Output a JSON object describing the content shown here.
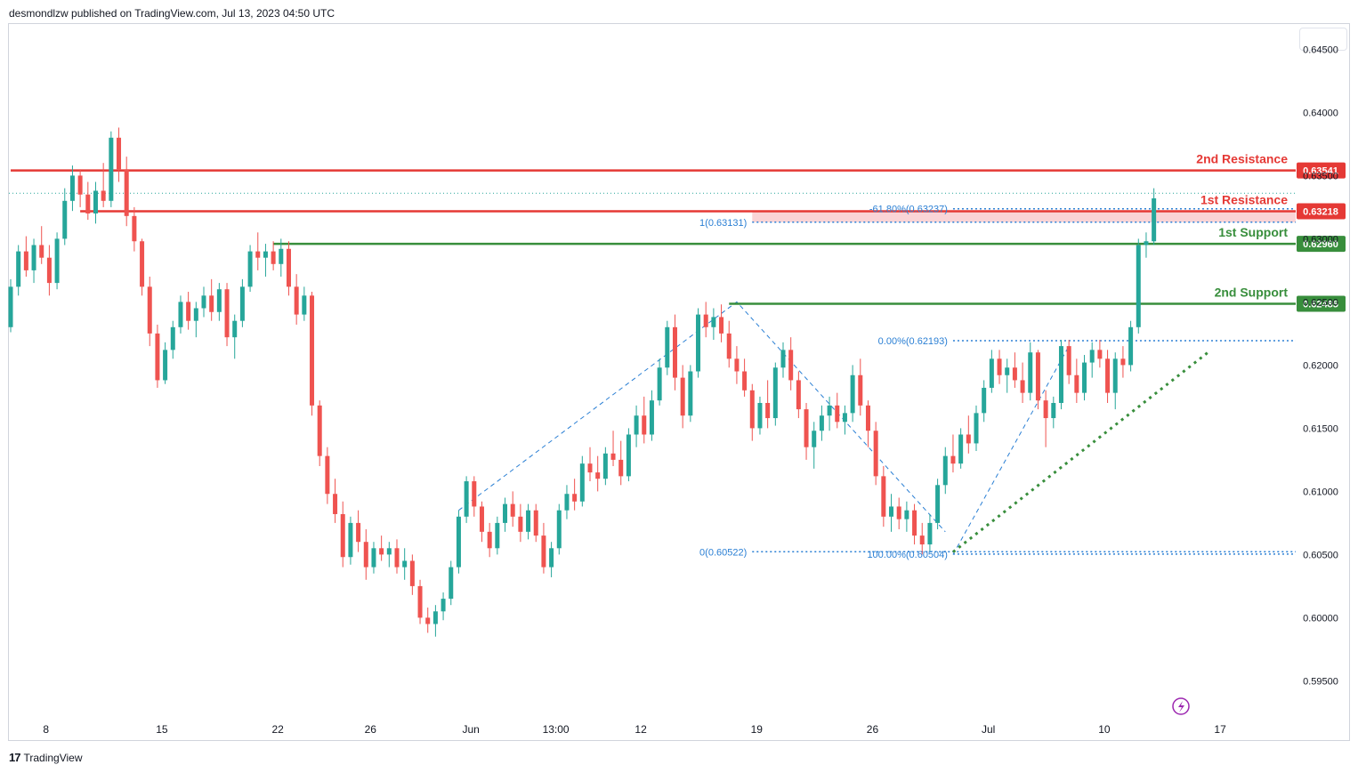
{
  "header": {
    "text": "desmondlzw published on TradingView.com, Jul 13, 2023 04:50 UTC"
  },
  "footer": {
    "brand": "TradingView",
    "logo": "17"
  },
  "colors": {
    "up": "#26a69a",
    "down": "#ef5350",
    "resistance": "#e53935",
    "support": "#388e3c",
    "fib": "#2a7fd4",
    "zone": "#f9c9cc"
  },
  "chart_data": {
    "type": "candlestick",
    "x_ticks": [
      {
        "label": "8",
        "i": 4
      },
      {
        "label": "15",
        "i": 19
      },
      {
        "label": "22",
        "i": 34
      },
      {
        "label": "26",
        "i": 46
      },
      {
        "label": "Jun",
        "i": 59
      },
      {
        "label": "13:00",
        "i": 70
      },
      {
        "label": "12",
        "i": 81
      },
      {
        "label": "19",
        "i": 96
      },
      {
        "label": "26",
        "i": 111
      },
      {
        "label": "Jul",
        "i": 126
      },
      {
        "label": "10",
        "i": 141
      },
      {
        "label": "17",
        "i": 156
      }
    ],
    "y_ticks": [
      "0.64500",
      "0.64000",
      "0.63500",
      "0.63000",
      "0.62500",
      "0.62000",
      "0.61500",
      "0.61000",
      "0.60500",
      "0.60000",
      "0.59500"
    ],
    "ylim": [
      0.592,
      0.647
    ],
    "levels": [
      {
        "name": "2nd Resistance",
        "price": 0.63541,
        "label": "0.63541",
        "kind": "resistance",
        "from_i": 0
      },
      {
        "name": "1st Resistance",
        "price": 0.63218,
        "label": "0.63218",
        "kind": "resistance",
        "from_i": 9
      },
      {
        "name": "1st Support",
        "price": 0.6296,
        "label": "0.62960",
        "kind": "support",
        "from_i": 34
      },
      {
        "name": "2nd Support",
        "price": 0.62485,
        "label": "0.62485",
        "kind": "support",
        "from_i": 93
      }
    ],
    "fib_labels": [
      {
        "text": "-61.80%(0.63237)",
        "price": 0.63237,
        "from_i": 122
      },
      {
        "text": "1(0.63131)",
        "price": 0.63131,
        "from_i": 96
      },
      {
        "text": "0.00%(0.62193)",
        "price": 0.62193,
        "from_i": 122
      },
      {
        "text": "100.00%(0.60504)",
        "price": 0.60504,
        "from_i": 122
      },
      {
        "text": "0(0.60522)",
        "price": 0.60522,
        "from_i": 96
      }
    ],
    "dashed_paths": [
      [
        [
          58,
          0.6085
        ],
        [
          94,
          0.625
        ],
        [
          121,
          0.6068
        ]
      ],
      [
        [
          122,
          0.605
        ],
        [
          137,
          0.6215
        ]
      ]
    ],
    "trendline": [
      [
        122,
        0.6052
      ],
      [
        155,
        0.621
      ]
    ],
    "zone": {
      "top": 0.63218,
      "bottom": 0.63131,
      "from_i": 96
    },
    "candles": [
      [
        0.623,
        0.6268,
        0.6226,
        0.6262
      ],
      [
        0.6262,
        0.6295,
        0.6255,
        0.629
      ],
      [
        0.629,
        0.6302,
        0.627,
        0.6275
      ],
      [
        0.6275,
        0.63,
        0.6265,
        0.6295
      ],
      [
        0.6295,
        0.631,
        0.628,
        0.6285
      ],
      [
        0.6285,
        0.6295,
        0.6255,
        0.6265
      ],
      [
        0.6265,
        0.6305,
        0.626,
        0.63
      ],
      [
        0.63,
        0.634,
        0.6295,
        0.633
      ],
      [
        0.633,
        0.6358,
        0.6322,
        0.635
      ],
      [
        0.635,
        0.6355,
        0.6325,
        0.6335
      ],
      [
        0.6335,
        0.6345,
        0.6315,
        0.632
      ],
      [
        0.632,
        0.6345,
        0.6312,
        0.6338
      ],
      [
        0.6338,
        0.636,
        0.6325,
        0.633
      ],
      [
        0.633,
        0.6385,
        0.6325,
        0.638
      ],
      [
        0.638,
        0.6388,
        0.6345,
        0.6355
      ],
      [
        0.6355,
        0.6365,
        0.631,
        0.6318
      ],
      [
        0.6318,
        0.6325,
        0.629,
        0.6298
      ],
      [
        0.6298,
        0.63,
        0.6255,
        0.6262
      ],
      [
        0.6262,
        0.627,
        0.6215,
        0.6225
      ],
      [
        0.6225,
        0.6232,
        0.6182,
        0.6188
      ],
      [
        0.6188,
        0.6218,
        0.6185,
        0.6212
      ],
      [
        0.6212,
        0.6235,
        0.6205,
        0.623
      ],
      [
        0.623,
        0.6255,
        0.6225,
        0.625
      ],
      [
        0.625,
        0.6258,
        0.6228,
        0.6235
      ],
      [
        0.6235,
        0.625,
        0.6222,
        0.6245
      ],
      [
        0.6245,
        0.6262,
        0.6238,
        0.6255
      ],
      [
        0.6255,
        0.6268,
        0.6235,
        0.6242
      ],
      [
        0.6242,
        0.6265,
        0.6235,
        0.626
      ],
      [
        0.626,
        0.6265,
        0.6215,
        0.6222
      ],
      [
        0.6222,
        0.624,
        0.6205,
        0.6235
      ],
      [
        0.6235,
        0.6268,
        0.623,
        0.6262
      ],
      [
        0.6262,
        0.6295,
        0.6258,
        0.629
      ],
      [
        0.629,
        0.6305,
        0.6275,
        0.6285
      ],
      [
        0.6285,
        0.6296,
        0.627,
        0.629
      ],
      [
        0.629,
        0.6298,
        0.6275,
        0.628
      ],
      [
        0.628,
        0.63,
        0.627,
        0.6292
      ],
      [
        0.6292,
        0.6298,
        0.6255,
        0.6262
      ],
      [
        0.6262,
        0.6272,
        0.6232,
        0.624
      ],
      [
        0.624,
        0.6262,
        0.6235,
        0.6255
      ],
      [
        0.6255,
        0.6258,
        0.616,
        0.6168
      ],
      [
        0.6168,
        0.6172,
        0.612,
        0.6128
      ],
      [
        0.6128,
        0.6135,
        0.609,
        0.6098
      ],
      [
        0.6098,
        0.611,
        0.6075,
        0.6082
      ],
      [
        0.6082,
        0.6092,
        0.604,
        0.6048
      ],
      [
        0.6048,
        0.608,
        0.6042,
        0.6075
      ],
      [
        0.6075,
        0.6085,
        0.6052,
        0.606
      ],
      [
        0.606,
        0.607,
        0.603,
        0.604
      ],
      [
        0.604,
        0.606,
        0.6035,
        0.6055
      ],
      [
        0.6055,
        0.6065,
        0.6045,
        0.605
      ],
      [
        0.605,
        0.606,
        0.604,
        0.6055
      ],
      [
        0.6055,
        0.6062,
        0.6035,
        0.604
      ],
      [
        0.604,
        0.6055,
        0.603,
        0.6045
      ],
      [
        0.6045,
        0.605,
        0.6018,
        0.6025
      ],
      [
        0.6025,
        0.603,
        0.5995,
        0.6
      ],
      [
        0.6,
        0.6008,
        0.5988,
        0.5995
      ],
      [
        0.5995,
        0.601,
        0.5985,
        0.6005
      ],
      [
        0.6005,
        0.602,
        0.5998,
        0.6015
      ],
      [
        0.6015,
        0.6045,
        0.601,
        0.604
      ],
      [
        0.604,
        0.6085,
        0.6035,
        0.608
      ],
      [
        0.608,
        0.6112,
        0.6075,
        0.6108
      ],
      [
        0.6108,
        0.6112,
        0.608,
        0.6088
      ],
      [
        0.6088,
        0.6092,
        0.606,
        0.6068
      ],
      [
        0.6068,
        0.6075,
        0.6048,
        0.6055
      ],
      [
        0.6055,
        0.608,
        0.605,
        0.6075
      ],
      [
        0.6075,
        0.6095,
        0.6068,
        0.609
      ],
      [
        0.609,
        0.61,
        0.6072,
        0.608
      ],
      [
        0.608,
        0.609,
        0.606,
        0.6068
      ],
      [
        0.6068,
        0.609,
        0.6062,
        0.6085
      ],
      [
        0.6085,
        0.609,
        0.606,
        0.6065
      ],
      [
        0.6065,
        0.6075,
        0.6035,
        0.604
      ],
      [
        0.604,
        0.606,
        0.6032,
        0.6055
      ],
      [
        0.6055,
        0.609,
        0.605,
        0.6085
      ],
      [
        0.6085,
        0.6105,
        0.6078,
        0.6098
      ],
      [
        0.6098,
        0.611,
        0.6085,
        0.6092
      ],
      [
        0.6092,
        0.6128,
        0.6088,
        0.6122
      ],
      [
        0.6122,
        0.6135,
        0.6108,
        0.6115
      ],
      [
        0.6115,
        0.6128,
        0.61,
        0.611
      ],
      [
        0.611,
        0.6135,
        0.6105,
        0.613
      ],
      [
        0.613,
        0.6148,
        0.612,
        0.6125
      ],
      [
        0.6125,
        0.614,
        0.6105,
        0.6112
      ],
      [
        0.6112,
        0.615,
        0.6108,
        0.6145
      ],
      [
        0.6145,
        0.6168,
        0.6135,
        0.616
      ],
      [
        0.616,
        0.6175,
        0.6138,
        0.6145
      ],
      [
        0.6145,
        0.618,
        0.614,
        0.6172
      ],
      [
        0.6172,
        0.6205,
        0.6168,
        0.6198
      ],
      [
        0.6198,
        0.6235,
        0.6192,
        0.623
      ],
      [
        0.623,
        0.624,
        0.618,
        0.619
      ],
      [
        0.619,
        0.62,
        0.615,
        0.616
      ],
      [
        0.616,
        0.62,
        0.6155,
        0.6195
      ],
      [
        0.6195,
        0.6245,
        0.619,
        0.624
      ],
      [
        0.624,
        0.625,
        0.6222,
        0.623
      ],
      [
        0.623,
        0.6245,
        0.622,
        0.6238
      ],
      [
        0.6238,
        0.6248,
        0.6218,
        0.6225
      ],
      [
        0.6225,
        0.6235,
        0.6198,
        0.6205
      ],
      [
        0.6205,
        0.6215,
        0.6185,
        0.6195
      ],
      [
        0.6195,
        0.6205,
        0.6175,
        0.618
      ],
      [
        0.618,
        0.6185,
        0.614,
        0.615
      ],
      [
        0.615,
        0.6175,
        0.6145,
        0.617
      ],
      [
        0.617,
        0.6188,
        0.615,
        0.6158
      ],
      [
        0.6158,
        0.6202,
        0.6152,
        0.6198
      ],
      [
        0.6198,
        0.6218,
        0.619,
        0.6212
      ],
      [
        0.6212,
        0.6222,
        0.618,
        0.6188
      ],
      [
        0.6188,
        0.6195,
        0.6158,
        0.6165
      ],
      [
        0.6165,
        0.617,
        0.6125,
        0.6135
      ],
      [
        0.6135,
        0.6155,
        0.6118,
        0.6148
      ],
      [
        0.6148,
        0.6168,
        0.614,
        0.616
      ],
      [
        0.616,
        0.6175,
        0.6148,
        0.6168
      ],
      [
        0.6168,
        0.6178,
        0.615,
        0.6155
      ],
      [
        0.6155,
        0.6168,
        0.6145,
        0.6162
      ],
      [
        0.6162,
        0.62,
        0.6155,
        0.6192
      ],
      [
        0.6192,
        0.6205,
        0.616,
        0.6168
      ],
      [
        0.6168,
        0.6172,
        0.6135,
        0.6148
      ],
      [
        0.6148,
        0.6155,
        0.6105,
        0.6112
      ],
      [
        0.6112,
        0.612,
        0.6072,
        0.608
      ],
      [
        0.608,
        0.6098,
        0.6068,
        0.6088
      ],
      [
        0.6088,
        0.6095,
        0.607,
        0.6078
      ],
      [
        0.6078,
        0.6092,
        0.6068,
        0.6085
      ],
      [
        0.6085,
        0.609,
        0.6058,
        0.6065
      ],
      [
        0.6065,
        0.6075,
        0.605,
        0.6058
      ],
      [
        0.6058,
        0.6082,
        0.6052,
        0.6075
      ],
      [
        0.6075,
        0.611,
        0.607,
        0.6105
      ],
      [
        0.6105,
        0.6135,
        0.6098,
        0.6128
      ],
      [
        0.6128,
        0.6145,
        0.6115,
        0.6122
      ],
      [
        0.6122,
        0.615,
        0.6118,
        0.6145
      ],
      [
        0.6145,
        0.616,
        0.613,
        0.6138
      ],
      [
        0.6138,
        0.6168,
        0.6132,
        0.6162
      ],
      [
        0.6162,
        0.6188,
        0.6155,
        0.6182
      ],
      [
        0.6182,
        0.6212,
        0.6178,
        0.6205
      ],
      [
        0.6205,
        0.6212,
        0.6185,
        0.6192
      ],
      [
        0.6192,
        0.6205,
        0.6178,
        0.6198
      ],
      [
        0.6198,
        0.621,
        0.6182,
        0.6188
      ],
      [
        0.6188,
        0.6202,
        0.617,
        0.6178
      ],
      [
        0.6178,
        0.6218,
        0.6172,
        0.621
      ],
      [
        0.621,
        0.6212,
        0.6165,
        0.6172
      ],
      [
        0.6172,
        0.618,
        0.6135,
        0.6158
      ],
      [
        0.6158,
        0.6175,
        0.615,
        0.617
      ],
      [
        0.617,
        0.622,
        0.6165,
        0.6215
      ],
      [
        0.6215,
        0.622,
        0.6185,
        0.6192
      ],
      [
        0.6192,
        0.6205,
        0.617,
        0.6178
      ],
      [
        0.6178,
        0.6208,
        0.6172,
        0.6202
      ],
      [
        0.6202,
        0.6218,
        0.619,
        0.6212
      ],
      [
        0.6212,
        0.622,
        0.6198,
        0.6205
      ],
      [
        0.6205,
        0.6212,
        0.617,
        0.6178
      ],
      [
        0.6178,
        0.621,
        0.6165,
        0.6205
      ],
      [
        0.6205,
        0.6215,
        0.619,
        0.62
      ],
      [
        0.62,
        0.6235,
        0.6195,
        0.623
      ],
      [
        0.623,
        0.63,
        0.6225,
        0.6295
      ],
      [
        0.6295,
        0.6305,
        0.6285,
        0.6298
      ],
      [
        0.6298,
        0.634,
        0.6295,
        0.6332
      ]
    ]
  }
}
